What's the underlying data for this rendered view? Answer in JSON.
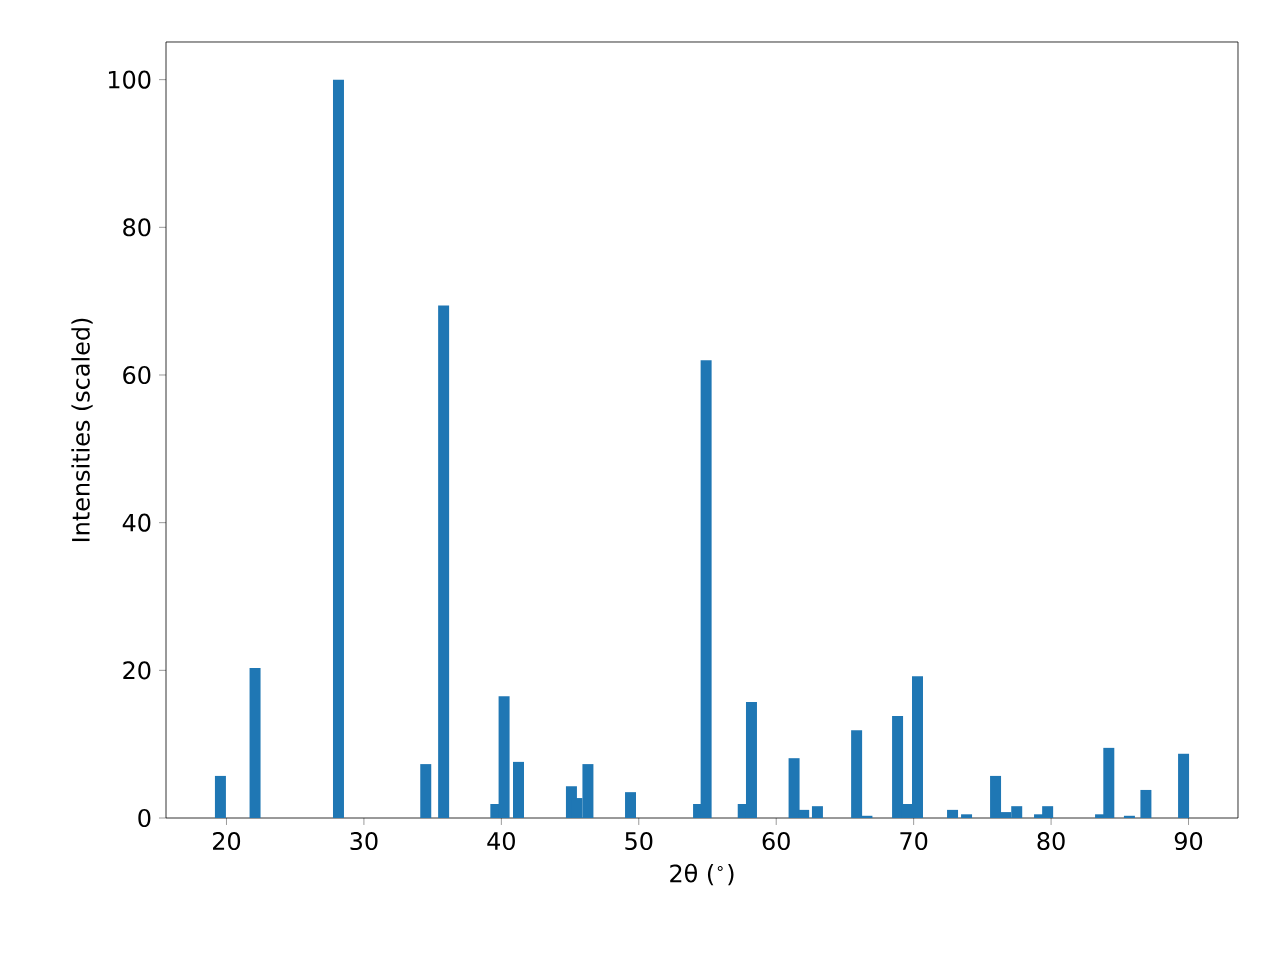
{
  "chart_data": {
    "type": "bar",
    "xlabel": "2θ ($^{∘}$)",
    "ylabel": "Intensities (scaled)",
    "x": [
      19.56,
      22.08,
      28.15,
      34.5,
      35.8,
      39.6,
      40.2,
      41.25,
      45.1,
      45.5,
      46.3,
      49.4,
      54.35,
      54.9,
      57.6,
      58.2,
      61.3,
      62.0,
      63.0,
      65.85,
      66.6,
      68.83,
      69.55,
      70.28,
      72.83,
      73.85,
      75.96,
      76.7,
      77.5,
      79.16,
      79.75,
      83.6,
      84.2,
      85.7,
      86.9,
      89.64
    ],
    "values": [
      5.7,
      20.3,
      100,
      7.3,
      69.4,
      1.9,
      16.5,
      7.6,
      4.3,
      2.7,
      7.3,
      3.5,
      1.9,
      62.0,
      1.9,
      15.7,
      8.1,
      1.1,
      1.6,
      11.9,
      0.3,
      13.8,
      1.9,
      19.2,
      1.1,
      0.5,
      5.7,
      0.8,
      1.6,
      0.5,
      1.6,
      0.5,
      9.5,
      0.3,
      3.8,
      8.7
    ],
    "color": "#1f77b4",
    "xlim": [
      15.6,
      93.6
    ],
    "ylim": [
      0,
      105.1
    ],
    "xticks": [
      20,
      30,
      40,
      50,
      60,
      70,
      80,
      90
    ],
    "yticks": [
      0,
      20,
      40,
      60,
      80,
      100
    ],
    "grid": false
  }
}
